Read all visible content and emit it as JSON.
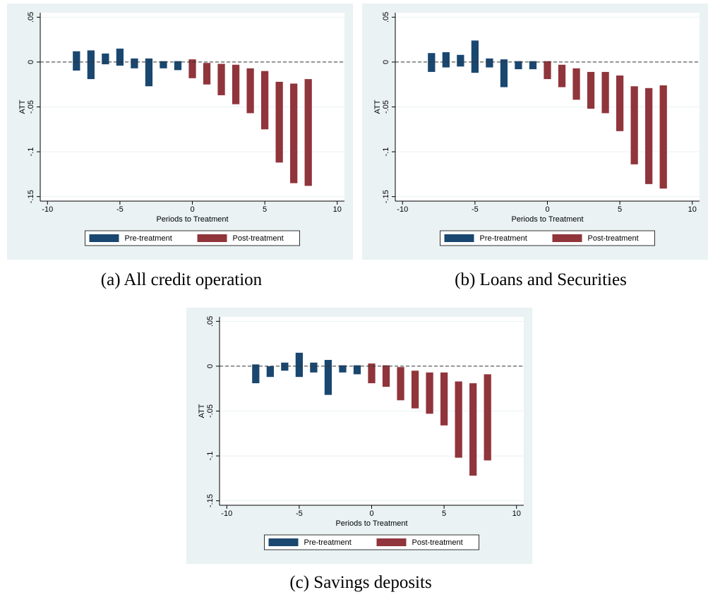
{
  "chart_data": [
    {
      "type": "rangebar",
      "caption": "(a) All credit operation",
      "ylabel": "ATT",
      "xlabel": "Periods to Treatment",
      "xlim": [
        -10.5,
        10.5
      ],
      "ylim": [
        -0.155,
        0.055
      ],
      "xticks": [
        -10,
        -5,
        0,
        5,
        10
      ],
      "yticks": [
        {
          "value": 0.05,
          "label": ".05"
        },
        0,
        {
          "value": -0.05,
          "label": "-.05"
        },
        {
          "value": -0.1,
          "label": "-.1"
        },
        {
          "value": -0.15,
          "label": "-.15"
        }
      ],
      "grid": true,
      "refline": 0,
      "legend": "bottom",
      "series": [
        {
          "name": "Pre-treatment",
          "color": "#1a476f",
          "x": [
            -8,
            -7,
            -6,
            -5,
            -4,
            -3,
            -2,
            -1
          ],
          "low": [
            -0.0095,
            -0.019,
            -0.0025,
            -0.004,
            -0.007,
            -0.027,
            -0.007,
            -0.009
          ],
          "high": [
            0.012,
            0.013,
            0.0095,
            0.015,
            0.004,
            0.004,
            0.001,
            0.001
          ]
        },
        {
          "name": "Post-treatment",
          "color": "#90353b",
          "x": [
            0,
            1,
            2,
            3,
            4,
            5,
            6,
            7,
            8
          ],
          "low": [
            -0.018,
            -0.025,
            -0.037,
            -0.047,
            -0.057,
            -0.075,
            -0.112,
            -0.135,
            -0.138
          ],
          "high": [
            0.003,
            -0.001,
            -0.002,
            -0.003,
            -0.007,
            -0.01,
            -0.022,
            -0.024,
            -0.019
          ]
        }
      ]
    },
    {
      "type": "rangebar",
      "caption": "(b) Loans and Securities",
      "ylabel": "ATT",
      "xlabel": "Periods to Treatment",
      "xlim": [
        -10.5,
        10.5
      ],
      "ylim": [
        -0.155,
        0.055
      ],
      "xticks": [
        -10,
        -5,
        0,
        5,
        10
      ],
      "yticks": [
        {
          "value": 0.05,
          "label": ".05"
        },
        0,
        {
          "value": -0.05,
          "label": "-.05"
        },
        {
          "value": -0.1,
          "label": "-.1"
        },
        {
          "value": -0.15,
          "label": "-.15"
        }
      ],
      "grid": true,
      "refline": 0,
      "legend": "bottom",
      "series": [
        {
          "name": "Pre-treatment",
          "color": "#1a476f",
          "x": [
            -8,
            -7,
            -6,
            -5,
            -4,
            -3,
            -2,
            -1
          ],
          "low": [
            -0.011,
            -0.006,
            -0.005,
            -0.012,
            -0.006,
            -0.028,
            -0.008,
            -0.008
          ],
          "high": [
            0.01,
            0.011,
            0.008,
            0.024,
            0.004,
            0.003,
            0.001,
            0.001
          ]
        },
        {
          "name": "Post-treatment",
          "color": "#90353b",
          "x": [
            0,
            1,
            2,
            3,
            4,
            5,
            6,
            7,
            8
          ],
          "low": [
            -0.019,
            -0.028,
            -0.042,
            -0.052,
            -0.057,
            -0.077,
            -0.114,
            -0.136,
            -0.141
          ],
          "high": [
            0.001,
            -0.003,
            -0.007,
            -0.011,
            -0.011,
            -0.015,
            -0.027,
            -0.029,
            -0.026
          ]
        }
      ]
    },
    {
      "type": "rangebar",
      "caption": "(c) Savings deposits",
      "ylabel": "ATT",
      "xlabel": "Periods to Treatment",
      "xlim": [
        -10.5,
        10.5
      ],
      "ylim": [
        -0.155,
        0.055
      ],
      "xticks": [
        -10,
        -5,
        0,
        5,
        10
      ],
      "yticks": [
        {
          "value": 0.05,
          "label": ".05"
        },
        0,
        {
          "value": -0.05,
          "label": "-.05"
        },
        {
          "value": -0.1,
          "label": "-.1"
        },
        {
          "value": -0.15,
          "label": "-.15"
        }
      ],
      "grid": true,
      "refline": 0,
      "legend": "bottom",
      "series": [
        {
          "name": "Pre-treatment",
          "color": "#1a476f",
          "x": [
            -8,
            -7,
            -6,
            -5,
            -4,
            -3,
            -2,
            -1
          ],
          "low": [
            -0.019,
            -0.012,
            -0.005,
            -0.012,
            -0.007,
            -0.032,
            -0.007,
            -0.009
          ],
          "high": [
            0.002,
            0,
            0.004,
            0.015,
            0.004,
            0.007,
            0.001,
            0.001
          ]
        },
        {
          "name": "Post-treatment",
          "color": "#90353b",
          "x": [
            0,
            1,
            2,
            3,
            4,
            5,
            6,
            7,
            8
          ],
          "low": [
            -0.019,
            -0.023,
            -0.038,
            -0.047,
            -0.053,
            -0.066,
            -0.102,
            -0.122,
            -0.105
          ],
          "high": [
            0.003,
            0.001,
            -0.001,
            -0.005,
            -0.007,
            -0.007,
            -0.017,
            -0.019,
            -0.009
          ]
        }
      ]
    }
  ]
}
